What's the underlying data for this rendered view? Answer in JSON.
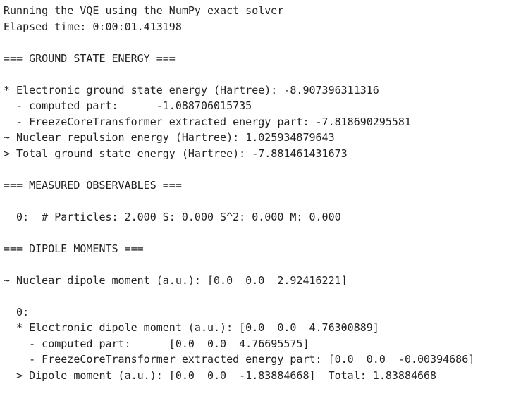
{
  "output": {
    "lines": [
      "Running the VQE using the NumPy exact solver",
      "Elapsed time: 0:00:01.413198",
      "",
      "=== GROUND STATE ENERGY ===",
      "",
      "* Electronic ground state energy (Hartree): -8.907396311316",
      "  - computed part:      -1.088706015735",
      "  - FreezeCoreTransformer extracted energy part: -7.818690295581",
      "~ Nuclear repulsion energy (Hartree): 1.025934879643",
      "> Total ground state energy (Hartree): -7.881461431673",
      "",
      "=== MEASURED OBSERVABLES ===",
      "",
      "  0:  # Particles: 2.000 S: 0.000 S^2: 0.000 M: 0.000",
      "",
      "=== DIPOLE MOMENTS ===",
      "",
      "~ Nuclear dipole moment (a.u.): [0.0  0.0  2.92416221]",
      "",
      "  0:",
      "  * Electronic dipole moment (a.u.): [0.0  0.0  4.76300889]",
      "    - computed part:      [0.0  0.0  4.76695575]",
      "    - FreezeCoreTransformer extracted energy part: [0.0  0.0  -0.00394686]",
      "  > Dipole moment (a.u.): [0.0  0.0  -1.83884668]  Total: 1.83884668"
    ]
  }
}
